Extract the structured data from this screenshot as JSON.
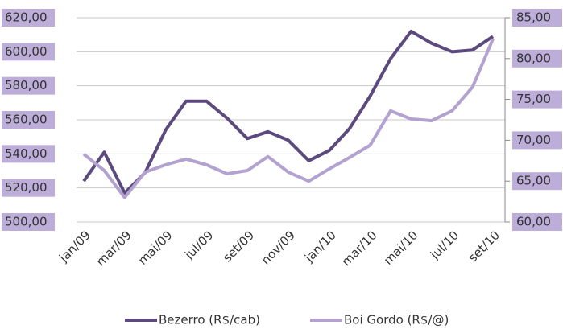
{
  "chart_data": {
    "type": "line",
    "categories": [
      "jan/09",
      null,
      "mar/09",
      null,
      "mai/09",
      null,
      "jul/09",
      null,
      "set/09",
      null,
      "nov/09",
      null,
      "jan/10",
      null,
      "mar/10",
      null,
      "mai/10",
      null,
      "jul/10",
      null,
      "set/10"
    ],
    "series": [
      {
        "name": "Bezerro (R$/cab)",
        "color": "#5c4a7e",
        "values": [
          524,
          541,
          517,
          529,
          554,
          571,
          571,
          561,
          549,
          553,
          548,
          536,
          542,
          555,
          574,
          596,
          612,
          605,
          600,
          601,
          609
        ]
      },
      {
        "name": "Boi Gordo (R$/@)",
        "color": "#b3a2cf",
        "axis": "y2",
        "values": [
          68.3,
          66.3,
          63.0,
          66.1,
          67.0,
          67.7,
          67.0,
          65.9,
          66.3,
          68.0,
          66.1,
          65.0,
          66.5,
          67.9,
          69.4,
          73.6,
          72.6,
          72.4,
          73.6,
          76.5,
          82.4
        ]
      }
    ],
    "ylim": [
      500,
      620
    ],
    "yticks": [
      {
        "value": 500,
        "label": "500,00"
      },
      {
        "value": 520,
        "label": "520,00"
      },
      {
        "value": 540,
        "label": "540,00"
      },
      {
        "value": 560,
        "label": "560,00"
      },
      {
        "value": 580,
        "label": "580,00"
      },
      {
        "value": 600,
        "label": "600,00"
      },
      {
        "value": 620,
        "label": "620,00"
      }
    ],
    "y2lim": [
      60,
      85
    ],
    "y2ticks": [
      {
        "value": 60,
        "label": "60,00"
      },
      {
        "value": 65,
        "label": "65,00"
      },
      {
        "value": 70,
        "label": "70,00"
      },
      {
        "value": 75,
        "label": "75,00"
      },
      {
        "value": 80,
        "label": "80,00"
      },
      {
        "value": 85,
        "label": "85,00"
      }
    ],
    "grid": true,
    "legend": "bottom"
  }
}
